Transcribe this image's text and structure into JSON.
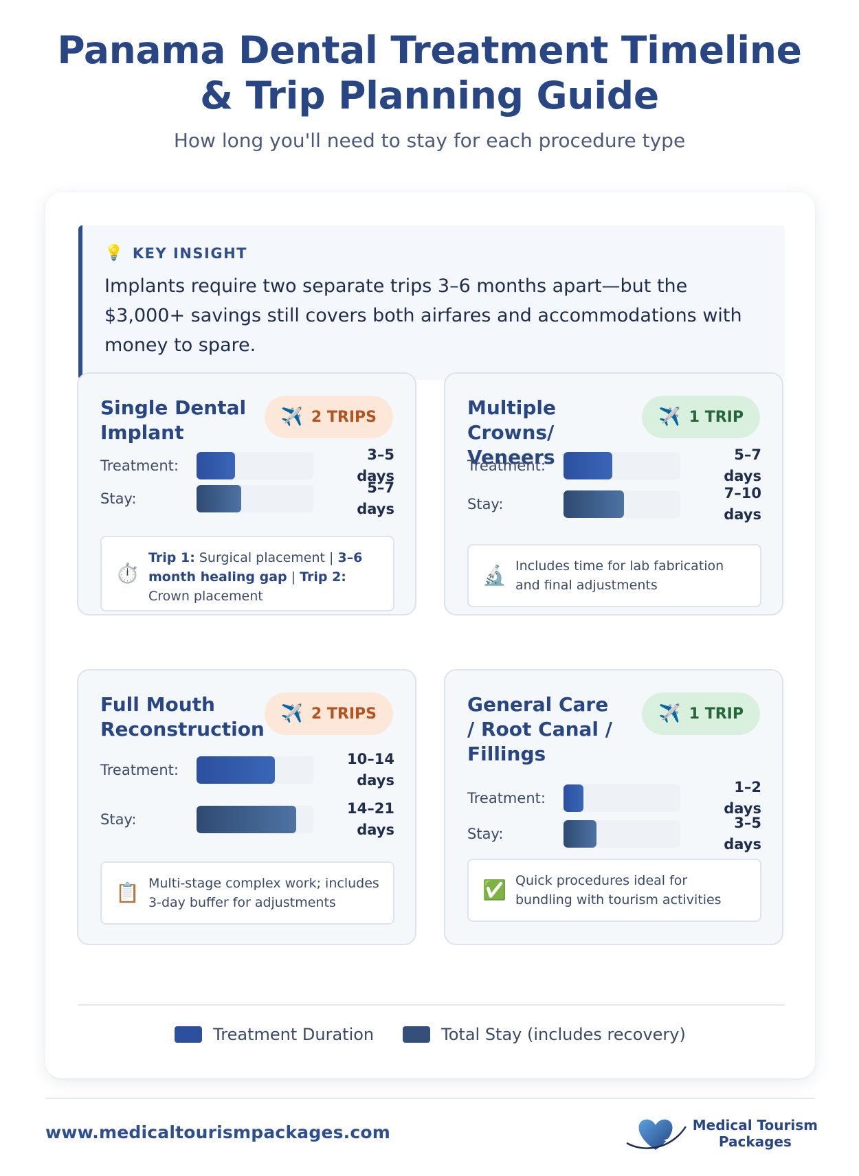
{
  "header": {
    "title_line1": "Panama Dental Treatment Timeline",
    "title_line2": "& Trip Planning Guide",
    "subtitle": "How long you'll need to stay for each procedure type"
  },
  "insight": {
    "label": "KEY INSIGHT",
    "icon": "lightbulb-icon",
    "text": "Implants require two separate trips 3–6 months apart—but the $3,000+ savings still covers both airfares and accommodations with money to spare."
  },
  "cards": [
    {
      "title": "Single Dental Implant",
      "badge": "2 TRIPS",
      "treatment_label": "Treatment:",
      "treatment_value": "3–5 days",
      "treatment_fraction": 0.33,
      "stay_label": "Stay:",
      "stay_value": "5–7 days",
      "stay_fraction": 0.38,
      "note_icon": "stopwatch-icon",
      "note": {
        "p1": "Trip 1:",
        "p2": " Surgical placement | ",
        "p3": "3–6 month healing gap",
        "p4": " | ",
        "p5": "Trip 2:",
        "p6": " Crown placement"
      }
    },
    {
      "title": "Multiple Crowns/ Veneers",
      "badge": "1 TRIP",
      "treatment_label": "Treatment:",
      "treatment_value": "5–7 days",
      "treatment_fraction": 0.42,
      "stay_label": "Stay:",
      "stay_value": "7–10 days",
      "stay_fraction": 0.52,
      "note_icon": "microscope-icon",
      "note_text": "Includes time for lab fabrication and final adjustments"
    },
    {
      "title": "Full Mouth Reconstruction",
      "badge": "2 TRIPS",
      "treatment_label": "Treatment:",
      "treatment_value": "10–14 days",
      "treatment_fraction": 0.67,
      "stay_label": "Stay:",
      "stay_value": "14–21 days",
      "stay_fraction": 0.85,
      "note_icon": "clipboard-icon",
      "note_text": "Multi-stage complex work; includes 3-day buffer for adjustments"
    },
    {
      "title": "General Care / Root Canal / Fillings",
      "badge": "1 TRIP",
      "treatment_label": "Treatment:",
      "treatment_value": "1–2 days",
      "treatment_fraction": 0.17,
      "stay_label": "Stay:",
      "stay_value": "3–5 days",
      "stay_fraction": 0.28,
      "note_icon": "checkmark-icon",
      "note_text": "Quick procedures ideal for bundling with tourism activities"
    }
  ],
  "legend": {
    "treatment": "Treatment Duration",
    "stay": "Total Stay (includes recovery)",
    "treatment_color": "#2c4f9e",
    "stay_color": "#34507a"
  },
  "footer": {
    "url": "www.medicaltourismpackages.com",
    "logo_line1": "Medical Tourism",
    "logo_line2": "Packages"
  }
}
